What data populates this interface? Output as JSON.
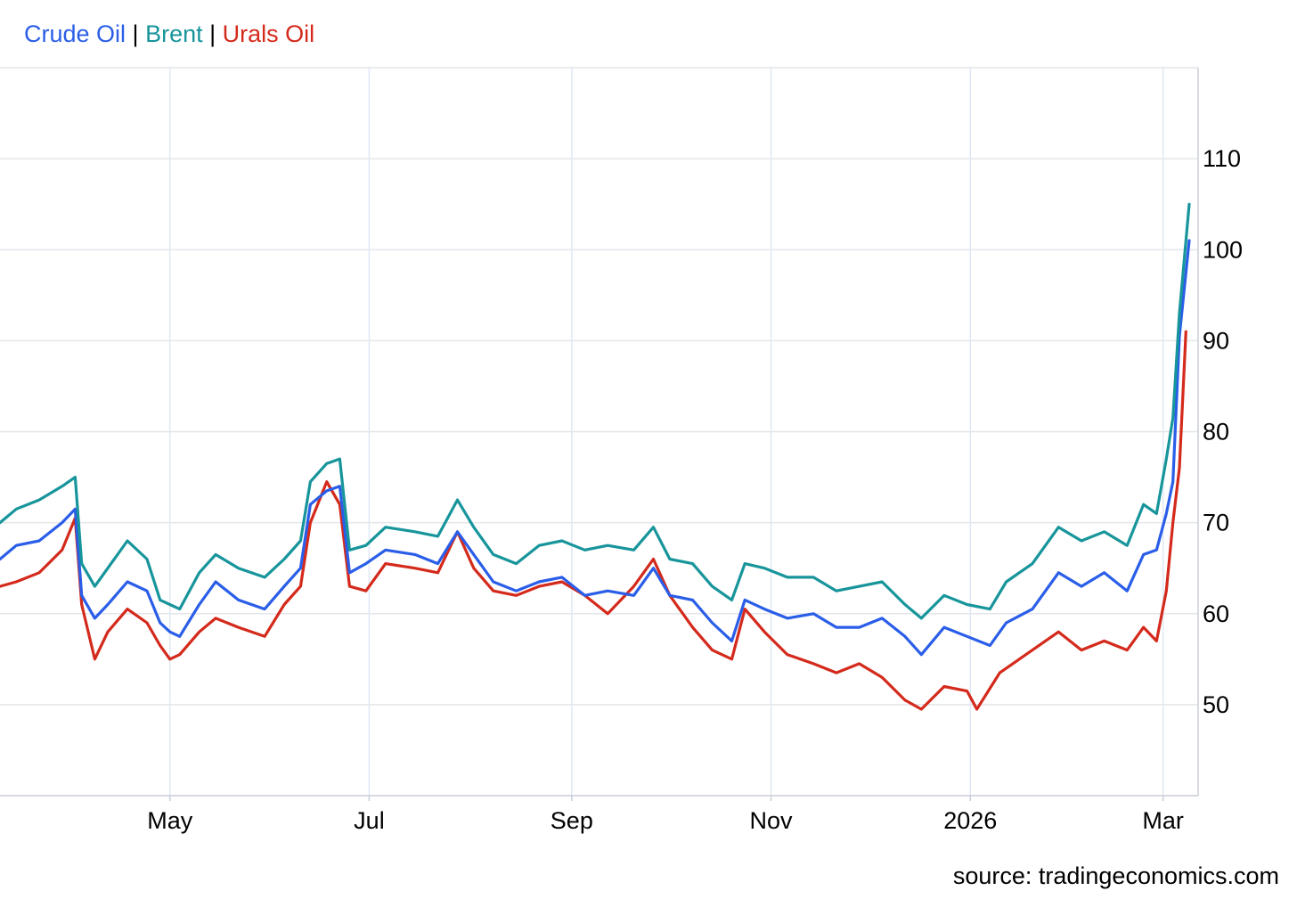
{
  "legend": {
    "items": [
      {
        "label": "Crude Oil",
        "color": "#2a5ee8"
      },
      {
        "label": "Brent",
        "color": "#17959b"
      },
      {
        "label": "Urals Oil",
        "color": "#d42a1c"
      }
    ],
    "separator": "|"
  },
  "source": "source: tradingeconomics.com",
  "chart_data": {
    "type": "line",
    "title": "",
    "xlabel": "",
    "ylabel": "",
    "x_tick_labels": [
      "May",
      "Jul",
      "Sep",
      "Nov",
      "2026",
      "Mar"
    ],
    "x_tick_dates": [
      "2025-05-01",
      "2025-07-01",
      "2025-09-01",
      "2025-11-01",
      "2026-01-01",
      "2026-03-01"
    ],
    "y_ticks": [
      50,
      60,
      70,
      80,
      90,
      100,
      110
    ],
    "ylim": [
      40,
      120
    ],
    "xlim": [
      "2025-03-10",
      "2026-03-09"
    ],
    "grid": true,
    "y_axis_position": "right",
    "legend_position": "top-left",
    "series": [
      {
        "name": "Crude Oil",
        "color": "#2a5ee8",
        "points": [
          [
            "2025-03-10",
            66.0
          ],
          [
            "2025-03-15",
            67.5
          ],
          [
            "2025-03-22",
            68.0
          ],
          [
            "2025-03-29",
            70.0
          ],
          [
            "2025-04-02",
            71.5
          ],
          [
            "2025-04-04",
            62.0
          ],
          [
            "2025-04-08",
            59.5
          ],
          [
            "2025-04-12",
            61.0
          ],
          [
            "2025-04-18",
            63.5
          ],
          [
            "2025-04-24",
            62.5
          ],
          [
            "2025-04-28",
            59.0
          ],
          [
            "2025-05-01",
            58.0
          ],
          [
            "2025-05-04",
            57.5
          ],
          [
            "2025-05-10",
            61.0
          ],
          [
            "2025-05-15",
            63.5
          ],
          [
            "2025-05-22",
            61.5
          ],
          [
            "2025-05-30",
            60.5
          ],
          [
            "2025-06-05",
            63.0
          ],
          [
            "2025-06-10",
            65.0
          ],
          [
            "2025-06-13",
            72.0
          ],
          [
            "2025-06-18",
            73.5
          ],
          [
            "2025-06-22",
            74.0
          ],
          [
            "2025-06-25",
            64.5
          ],
          [
            "2025-06-30",
            65.5
          ],
          [
            "2025-07-06",
            67.0
          ],
          [
            "2025-07-15",
            66.5
          ],
          [
            "2025-07-22",
            65.5
          ],
          [
            "2025-07-28",
            69.0
          ],
          [
            "2025-08-02",
            66.5
          ],
          [
            "2025-08-08",
            63.5
          ],
          [
            "2025-08-15",
            62.5
          ],
          [
            "2025-08-22",
            63.5
          ],
          [
            "2025-08-29",
            64.0
          ],
          [
            "2025-09-05",
            62.0
          ],
          [
            "2025-09-12",
            62.5
          ],
          [
            "2025-09-20",
            62.0
          ],
          [
            "2025-09-26",
            65.0
          ],
          [
            "2025-10-01",
            62.0
          ],
          [
            "2025-10-08",
            61.5
          ],
          [
            "2025-10-14",
            59.0
          ],
          [
            "2025-10-20",
            57.0
          ],
          [
            "2025-10-24",
            61.5
          ],
          [
            "2025-10-30",
            60.5
          ],
          [
            "2025-11-06",
            59.5
          ],
          [
            "2025-11-14",
            60.0
          ],
          [
            "2025-11-21",
            58.5
          ],
          [
            "2025-11-28",
            58.5
          ],
          [
            "2025-12-05",
            59.5
          ],
          [
            "2025-12-12",
            57.5
          ],
          [
            "2025-12-17",
            55.5
          ],
          [
            "2025-12-24",
            58.5
          ],
          [
            "2025-12-31",
            57.5
          ],
          [
            "2026-01-07",
            56.5
          ],
          [
            "2026-01-12",
            59.0
          ],
          [
            "2026-01-20",
            60.5
          ],
          [
            "2026-01-28",
            64.5
          ],
          [
            "2026-02-04",
            63.0
          ],
          [
            "2026-02-11",
            64.5
          ],
          [
            "2026-02-18",
            62.5
          ],
          [
            "2026-02-23",
            66.5
          ],
          [
            "2026-02-27",
            67.0
          ],
          [
            "2026-03-02",
            71.0
          ],
          [
            "2026-03-04",
            74.5
          ],
          [
            "2026-03-06",
            90.5
          ],
          [
            "2026-03-09",
            101.0
          ]
        ]
      },
      {
        "name": "Brent",
        "color": "#17959b",
        "points": [
          [
            "2025-03-10",
            70.0
          ],
          [
            "2025-03-15",
            71.5
          ],
          [
            "2025-03-22",
            72.5
          ],
          [
            "2025-03-29",
            74.0
          ],
          [
            "2025-04-02",
            75.0
          ],
          [
            "2025-04-04",
            65.5
          ],
          [
            "2025-04-08",
            63.0
          ],
          [
            "2025-04-12",
            65.0
          ],
          [
            "2025-04-18",
            68.0
          ],
          [
            "2025-04-24",
            66.0
          ],
          [
            "2025-04-28",
            61.5
          ],
          [
            "2025-05-01",
            61.0
          ],
          [
            "2025-05-04",
            60.5
          ],
          [
            "2025-05-10",
            64.5
          ],
          [
            "2025-05-15",
            66.5
          ],
          [
            "2025-05-22",
            65.0
          ],
          [
            "2025-05-30",
            64.0
          ],
          [
            "2025-06-05",
            66.0
          ],
          [
            "2025-06-10",
            68.0
          ],
          [
            "2025-06-13",
            74.5
          ],
          [
            "2025-06-18",
            76.5
          ],
          [
            "2025-06-22",
            77.0
          ],
          [
            "2025-06-25",
            67.0
          ],
          [
            "2025-06-30",
            67.5
          ],
          [
            "2025-07-06",
            69.5
          ],
          [
            "2025-07-15",
            69.0
          ],
          [
            "2025-07-22",
            68.5
          ],
          [
            "2025-07-28",
            72.5
          ],
          [
            "2025-08-02",
            69.5
          ],
          [
            "2025-08-08",
            66.5
          ],
          [
            "2025-08-15",
            65.5
          ],
          [
            "2025-08-22",
            67.5
          ],
          [
            "2025-08-29",
            68.0
          ],
          [
            "2025-09-05",
            67.0
          ],
          [
            "2025-09-12",
            67.5
          ],
          [
            "2025-09-20",
            67.0
          ],
          [
            "2025-09-26",
            69.5
          ],
          [
            "2025-10-01",
            66.0
          ],
          [
            "2025-10-08",
            65.5
          ],
          [
            "2025-10-14",
            63.0
          ],
          [
            "2025-10-20",
            61.5
          ],
          [
            "2025-10-24",
            65.5
          ],
          [
            "2025-10-30",
            65.0
          ],
          [
            "2025-11-06",
            64.0
          ],
          [
            "2025-11-14",
            64.0
          ],
          [
            "2025-11-21",
            62.5
          ],
          [
            "2025-11-28",
            63.0
          ],
          [
            "2025-12-05",
            63.5
          ],
          [
            "2025-12-12",
            61.0
          ],
          [
            "2025-12-17",
            59.5
          ],
          [
            "2025-12-24",
            62.0
          ],
          [
            "2025-12-31",
            61.0
          ],
          [
            "2026-01-07",
            60.5
          ],
          [
            "2026-01-12",
            63.5
          ],
          [
            "2026-01-20",
            65.5
          ],
          [
            "2026-01-28",
            69.5
          ],
          [
            "2026-02-04",
            68.0
          ],
          [
            "2026-02-11",
            69.0
          ],
          [
            "2026-02-18",
            67.5
          ],
          [
            "2026-02-23",
            72.0
          ],
          [
            "2026-02-27",
            71.0
          ],
          [
            "2026-03-02",
            77.0
          ],
          [
            "2026-03-04",
            81.5
          ],
          [
            "2026-03-06",
            93.0
          ],
          [
            "2026-03-09",
            105.0
          ]
        ]
      },
      {
        "name": "Urals Oil",
        "color": "#d42a1c",
        "points": [
          [
            "2025-03-10",
            63.0
          ],
          [
            "2025-03-15",
            63.5
          ],
          [
            "2025-03-22",
            64.5
          ],
          [
            "2025-03-29",
            67.0
          ],
          [
            "2025-04-02",
            70.5
          ],
          [
            "2025-04-04",
            61.0
          ],
          [
            "2025-04-08",
            55.0
          ],
          [
            "2025-04-12",
            58.0
          ],
          [
            "2025-04-18",
            60.5
          ],
          [
            "2025-04-24",
            59.0
          ],
          [
            "2025-04-28",
            56.5
          ],
          [
            "2025-05-01",
            55.0
          ],
          [
            "2025-05-04",
            55.5
          ],
          [
            "2025-05-10",
            58.0
          ],
          [
            "2025-05-15",
            59.5
          ],
          [
            "2025-05-22",
            58.5
          ],
          [
            "2025-05-30",
            57.5
          ],
          [
            "2025-06-05",
            61.0
          ],
          [
            "2025-06-10",
            63.0
          ],
          [
            "2025-06-13",
            70.0
          ],
          [
            "2025-06-18",
            74.5
          ],
          [
            "2025-06-22",
            72.0
          ],
          [
            "2025-06-25",
            63.0
          ],
          [
            "2025-06-30",
            62.5
          ],
          [
            "2025-07-06",
            65.5
          ],
          [
            "2025-07-15",
            65.0
          ],
          [
            "2025-07-22",
            64.5
          ],
          [
            "2025-07-28",
            69.0
          ],
          [
            "2025-08-02",
            65.0
          ],
          [
            "2025-08-08",
            62.5
          ],
          [
            "2025-08-15",
            62.0
          ],
          [
            "2025-08-22",
            63.0
          ],
          [
            "2025-08-29",
            63.5
          ],
          [
            "2025-09-05",
            62.0
          ],
          [
            "2025-09-12",
            60.0
          ],
          [
            "2025-09-20",
            63.0
          ],
          [
            "2025-09-26",
            66.0
          ],
          [
            "2025-10-01",
            62.0
          ],
          [
            "2025-10-08",
            58.5
          ],
          [
            "2025-10-14",
            56.0
          ],
          [
            "2025-10-20",
            55.0
          ],
          [
            "2025-10-24",
            60.5
          ],
          [
            "2025-10-30",
            58.0
          ],
          [
            "2025-11-06",
            55.5
          ],
          [
            "2025-11-14",
            54.5
          ],
          [
            "2025-11-21",
            53.5
          ],
          [
            "2025-11-28",
            54.5
          ],
          [
            "2025-12-05",
            53.0
          ],
          [
            "2025-12-12",
            50.5
          ],
          [
            "2025-12-17",
            49.5
          ],
          [
            "2025-12-24",
            52.0
          ],
          [
            "2025-12-31",
            51.5
          ],
          [
            "2026-01-03",
            49.5
          ],
          [
            "2026-01-10",
            53.5
          ],
          [
            "2026-01-20",
            56.0
          ],
          [
            "2026-01-28",
            58.0
          ],
          [
            "2026-02-04",
            56.0
          ],
          [
            "2026-02-11",
            57.0
          ],
          [
            "2026-02-18",
            56.0
          ],
          [
            "2026-02-23",
            58.5
          ],
          [
            "2026-02-27",
            57.0
          ],
          [
            "2026-03-02",
            62.5
          ],
          [
            "2026-03-04",
            70.0
          ],
          [
            "2026-03-06",
            76.0
          ],
          [
            "2026-03-08",
            91.0
          ]
        ]
      }
    ]
  }
}
